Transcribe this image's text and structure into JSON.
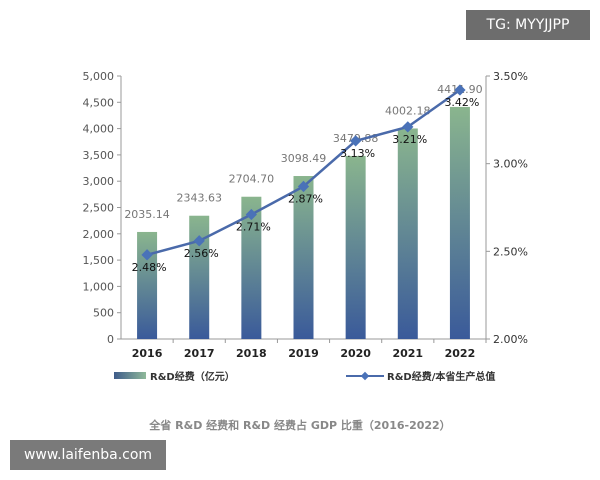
{
  "watermarks": {
    "tg": "TG: MYYJJPP",
    "site": "www.laifenba.com"
  },
  "chart_data": {
    "type": "bar+line",
    "title": "全省 R&D 经费和 R&D 经费占 GDP 比重（2016-2022）",
    "categories": [
      "2016",
      "2017",
      "2018",
      "2019",
      "2020",
      "2021",
      "2022"
    ],
    "series": [
      {
        "name": "R&D经费（亿元）",
        "type": "bar",
        "axis": "left",
        "values": [
          2035.14,
          2343.63,
          2704.7,
          3098.49,
          3479.88,
          4002.18,
          4411.9
        ],
        "labels": [
          "2035.14",
          "2343.63",
          "2704.70",
          "3098.49",
          "3479.88",
          "4002.18",
          "4411.90"
        ]
      },
      {
        "name": "R&D经费/本省生产总值",
        "type": "line",
        "axis": "right",
        "values": [
          2.48,
          2.56,
          2.71,
          2.87,
          3.13,
          3.21,
          3.42
        ],
        "labels": [
          "2.48%",
          "2.56%",
          "2.71%",
          "2.87%",
          "3.13%",
          "3.21%",
          "3.42%"
        ]
      }
    ],
    "left_axis": {
      "ylim": [
        0,
        5000
      ],
      "ticks": [
        "0",
        "500",
        "1,000",
        "1,500",
        "2,000",
        "2,500",
        "3,000",
        "3,500",
        "4,000",
        "4,500",
        "5,000"
      ]
    },
    "right_axis": {
      "ylim": [
        2.0,
        3.5
      ],
      "ticks": [
        "2.00%",
        "2.50%",
        "3.00%",
        "3.50%"
      ]
    },
    "legend_position": "bottom",
    "colors": {
      "bar_top": "#8ab58e",
      "bar_bottom": "#3a5a9a",
      "line": "#4a6aaa",
      "marker": "#4a72b8"
    }
  }
}
